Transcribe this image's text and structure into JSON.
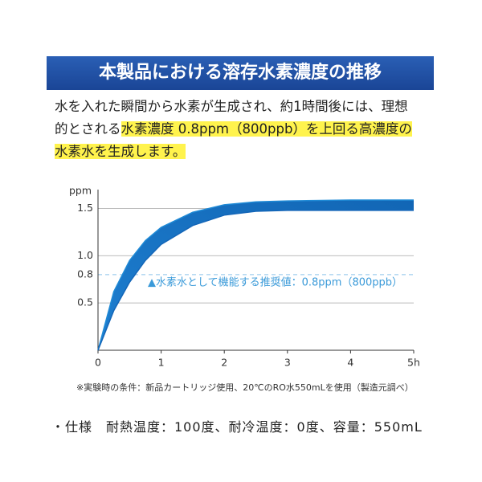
{
  "chart_data": {
    "type": "band",
    "title": "本製品における溶存水素濃度の推移",
    "description": [
      "水を入れた瞬間から水素が生成され、約1時間後には、理想",
      "的とされる",
      "水素濃度 0.8ppm（800ppb）を上回る高濃度の",
      "水素水を生成します。"
    ],
    "y_label": "ppm",
    "x": [
      0,
      0.25,
      0.5,
      0.75,
      1,
      1.5,
      2,
      2.5,
      3,
      4,
      5
    ],
    "series": [
      {
        "color": "#1f8ad6",
        "values": [
          0,
          0.62,
          0.95,
          1.16,
          1.3,
          1.46,
          1.54,
          1.57,
          1.58,
          1.59,
          1.59
        ]
      },
      {
        "color": "#1466b8",
        "values": [
          0,
          0.42,
          0.72,
          0.95,
          1.12,
          1.32,
          1.43,
          1.47,
          1.48,
          1.48,
          1.48
        ]
      }
    ],
    "xlim": [
      0,
      5
    ],
    "ylim": [
      0,
      1.7
    ],
    "xticks": [
      0,
      1,
      2,
      3,
      4,
      {
        "value": 5,
        "label": "5h"
      }
    ],
    "yticks": [
      0.5,
      0.8,
      {
        "value": 1,
        "label": "1.0"
      },
      1.5
    ],
    "grid": true,
    "threshold": 0.8,
    "threshold_label": "▲水素水として機能する推奨値：0.8ppm（800ppb）",
    "note": "※実験時の条件：新品カートリッジ使用、20℃のRO水550mLを使用（製造元調べ）",
    "spec": "・仕様　耐熱温度：100度、耐冷温度：0度、容量：550mL"
  }
}
